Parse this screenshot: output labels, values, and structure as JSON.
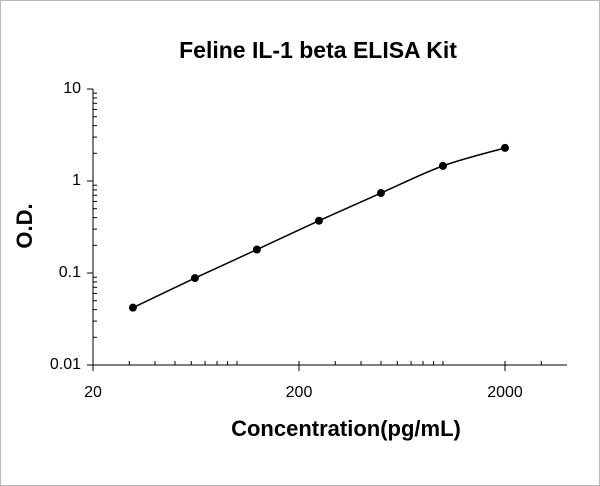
{
  "chart_data": {
    "type": "scatter",
    "title": "Feline IL-1 beta ELISA Kit",
    "x_label": "Concentration(pg/mL)",
    "y_label": "O.D.",
    "x": [
      31.25,
      62.5,
      125,
      250,
      500,
      1000,
      2000
    ],
    "series": [
      {
        "color": "#000000",
        "values": [
          0.042,
          0.088,
          0.18,
          0.37,
          0.74,
          1.46,
          2.29
        ]
      }
    ],
    "xlim": [
      20,
      4000
    ],
    "ylim": [
      0.01,
      10
    ],
    "xticks": [
      20,
      200,
      2000
    ],
    "yticks": [
      0.01,
      0.1,
      1,
      10
    ],
    "log_x": true,
    "log_y": true,
    "fit_line": true
  }
}
